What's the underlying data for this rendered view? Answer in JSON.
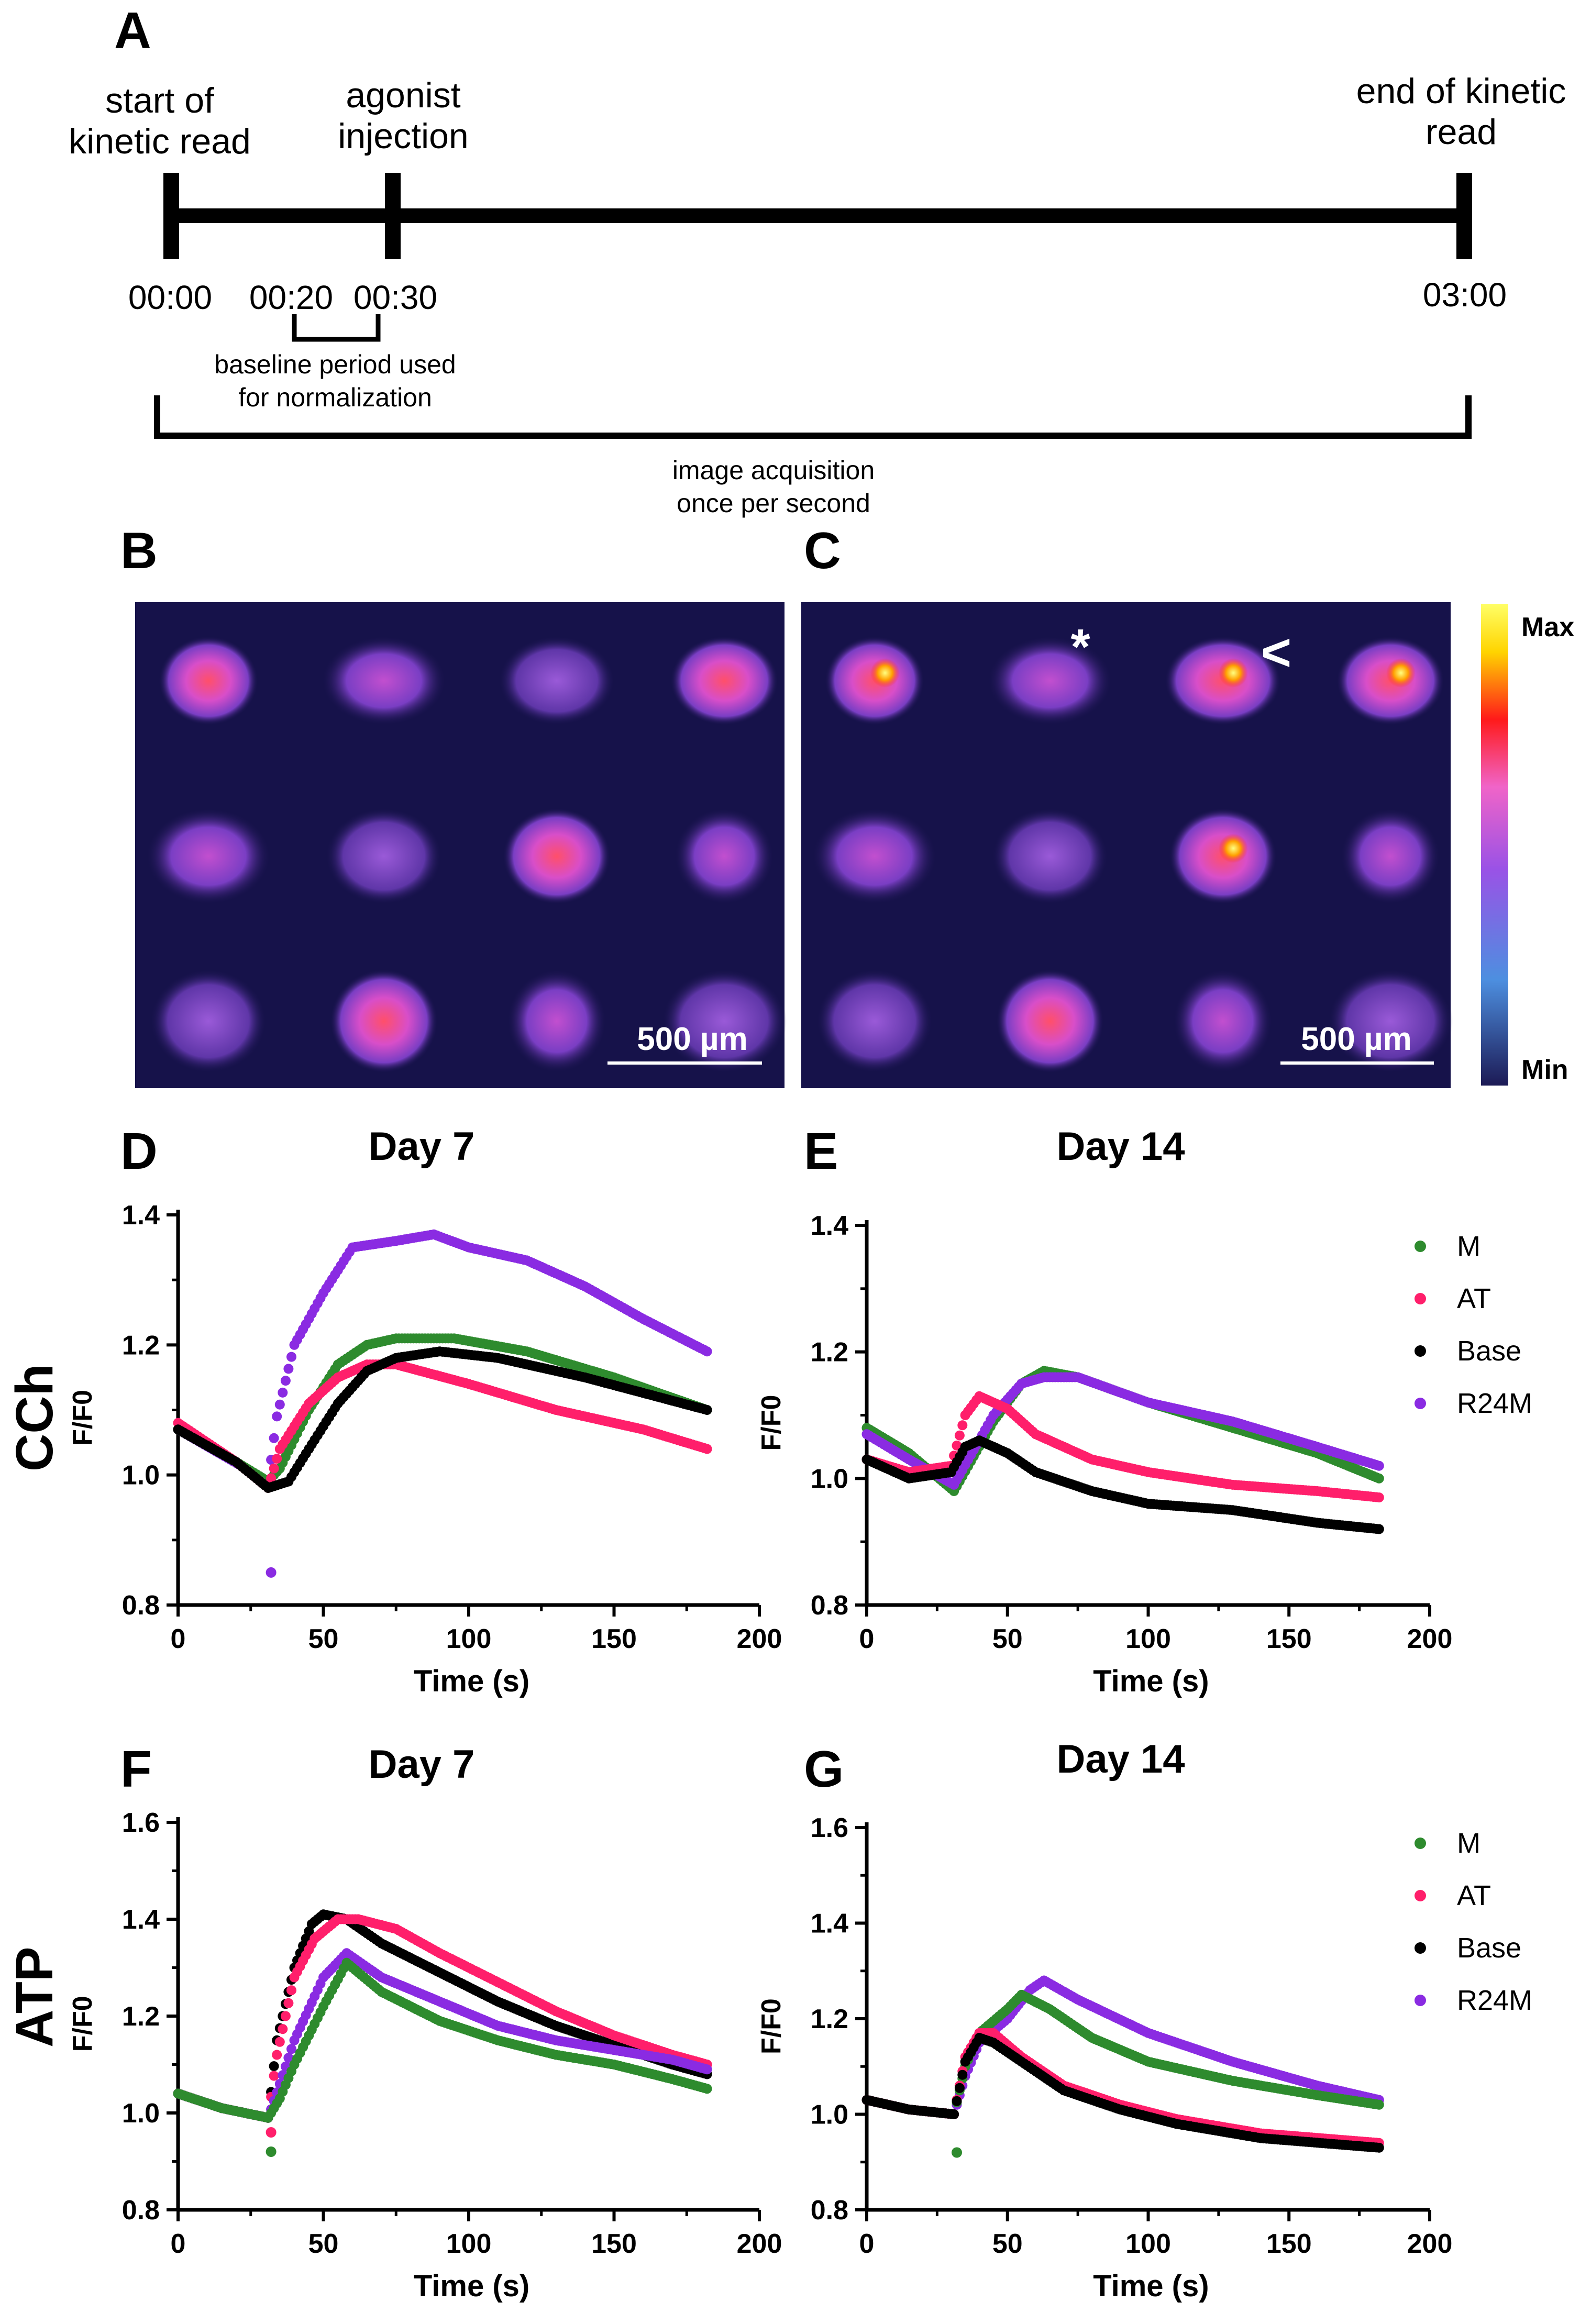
{
  "panel_labels": [
    "A",
    "B",
    "C",
    "D",
    "E",
    "F",
    "G"
  ],
  "timeline": {
    "start_label": [
      "start of",
      "kinetic read"
    ],
    "injection_label": [
      "agonist",
      "injection"
    ],
    "end_label": [
      "end of kinetic",
      "read"
    ],
    "times": [
      "00:00",
      "00:20",
      "00:30",
      "03:00"
    ],
    "baseline_label": [
      "baseline period used",
      "for normalization"
    ],
    "acquisition_label": [
      "image acquisition",
      "once per second"
    ]
  },
  "images": {
    "scale_bar": "500 µm",
    "colorbar_max": "Max",
    "colorbar_min": "Min",
    "markers": [
      "*",
      "<"
    ],
    "colors": {
      "background": "#16124a",
      "colorbar_stops": [
        "#1c1a55",
        "#4d8fe0",
        "#9a52e6",
        "#f064c8",
        "#ff1a1a",
        "#ffd400",
        "#ffff66"
      ]
    }
  },
  "row_labels": {
    "cch": "CCh",
    "atp": "ATP"
  },
  "legend": {
    "entries": [
      {
        "name": "M",
        "color": "#2e8b2e"
      },
      {
        "name": "AT",
        "color": "#ff1f6b"
      },
      {
        "name": "Base",
        "color": "#000000"
      },
      {
        "name": "R24M",
        "color": "#8a2be2"
      }
    ]
  },
  "chart_data": [
    {
      "panel": "D",
      "type": "scatter",
      "title": "Day 7",
      "xlabel": "Time (s)",
      "ylabel": "F/F0",
      "xlim": [
        0,
        200
      ],
      "ylim": [
        0.8,
        1.4
      ],
      "xticks": [
        "0",
        "50",
        "100",
        "150",
        "200"
      ],
      "yticks": [
        "0.8",
        "1.0",
        "1.2",
        "1.4"
      ],
      "series": [
        {
          "name": "R24M",
          "x": [
            0,
            31,
            34,
            40,
            50,
            60,
            75,
            88,
            100,
            120,
            140,
            160,
            182
          ],
          "y": [
            1.07,
            0.99,
            1.09,
            1.2,
            1.28,
            1.35,
            1.36,
            1.37,
            1.35,
            1.33,
            1.29,
            1.24,
            1.19
          ]
        },
        {
          "name": "M",
          "x": [
            0,
            20,
            31,
            35,
            45,
            55,
            65,
            75,
            95,
            120,
            150,
            182
          ],
          "y": [
            1.07,
            1.02,
            0.99,
            1.01,
            1.1,
            1.17,
            1.2,
            1.21,
            1.21,
            1.19,
            1.15,
            1.1
          ]
        },
        {
          "name": "AT",
          "x": [
            0,
            20,
            31,
            35,
            45,
            55,
            65,
            75,
            100,
            130,
            160,
            182
          ],
          "y": [
            1.08,
            1.02,
            0.98,
            1.04,
            1.11,
            1.15,
            1.17,
            1.17,
            1.14,
            1.1,
            1.07,
            1.04
          ]
        },
        {
          "name": "Base",
          "x": [
            0,
            20,
            31,
            38,
            45,
            55,
            65,
            75,
            90,
            110,
            140,
            182
          ],
          "y": [
            1.07,
            1.02,
            0.98,
            0.99,
            1.04,
            1.11,
            1.16,
            1.18,
            1.19,
            1.18,
            1.15,
            1.1
          ]
        }
      ],
      "outliers": [
        {
          "series": "R24M",
          "x": 32,
          "y": 0.85
        }
      ]
    },
    {
      "panel": "E",
      "type": "scatter",
      "title": "Day 14",
      "xlabel": "Time (s)",
      "ylabel": "F/F0",
      "xlim": [
        0,
        200
      ],
      "ylim": [
        0.8,
        1.4
      ],
      "xticks": [
        "0",
        "50",
        "100",
        "150",
        "200"
      ],
      "yticks": [
        "0.8",
        "1.0",
        "1.2",
        "1.4"
      ],
      "series": [
        {
          "name": "M",
          "x": [
            0,
            15,
            31,
            45,
            55,
            63,
            75,
            100,
            130,
            160,
            182
          ],
          "y": [
            1.08,
            1.04,
            0.98,
            1.09,
            1.15,
            1.17,
            1.16,
            1.12,
            1.08,
            1.04,
            1.0
          ]
        },
        {
          "name": "R24M",
          "x": [
            0,
            15,
            31,
            45,
            55,
            63,
            75,
            100,
            130,
            160,
            182
          ],
          "y": [
            1.07,
            1.03,
            0.99,
            1.1,
            1.15,
            1.16,
            1.16,
            1.12,
            1.09,
            1.05,
            1.02
          ]
        },
        {
          "name": "AT",
          "x": [
            0,
            15,
            30,
            35,
            40,
            50,
            60,
            80,
            100,
            130,
            160,
            182
          ],
          "y": [
            1.03,
            1.01,
            1.02,
            1.1,
            1.13,
            1.11,
            1.07,
            1.03,
            1.01,
            0.99,
            0.98,
            0.97
          ]
        },
        {
          "name": "Base",
          "x": [
            0,
            15,
            30,
            35,
            40,
            50,
            60,
            80,
            100,
            130,
            160,
            182
          ],
          "y": [
            1.03,
            1.0,
            1.01,
            1.05,
            1.06,
            1.04,
            1.01,
            0.98,
            0.96,
            0.95,
            0.93,
            0.92
          ]
        }
      ]
    },
    {
      "panel": "F",
      "type": "scatter",
      "title": "Day 7",
      "xlabel": "Time (s)",
      "ylabel": "F/F0",
      "xlim": [
        0,
        200
      ],
      "ylim": [
        0.8,
        1.6
      ],
      "xticks": [
        "0",
        "50",
        "100",
        "150",
        "200"
      ],
      "yticks": [
        "0.8",
        "1.0",
        "1.2",
        "1.4",
        "1.6"
      ],
      "series": [
        {
          "name": "Base",
          "x": [
            0,
            15,
            31,
            34,
            40,
            46,
            50,
            58,
            70,
            90,
            110,
            130,
            150,
            170,
            182
          ],
          "y": [
            1.04,
            1.01,
            0.99,
            1.15,
            1.3,
            1.39,
            1.41,
            1.4,
            1.35,
            1.29,
            1.23,
            1.18,
            1.14,
            1.1,
            1.08
          ]
        },
        {
          "name": "AT",
          "x": [
            0,
            15,
            31,
            34,
            40,
            47,
            55,
            62,
            75,
            90,
            110,
            130,
            150,
            170,
            182
          ],
          "y": [
            1.04,
            1.01,
            0.99,
            1.12,
            1.28,
            1.36,
            1.4,
            1.4,
            1.38,
            1.33,
            1.27,
            1.21,
            1.16,
            1.12,
            1.1
          ]
        },
        {
          "name": "R24M",
          "x": [
            0,
            15,
            31,
            35,
            40,
            50,
            58,
            70,
            90,
            110,
            130,
            150,
            170,
            182
          ],
          "y": [
            1.04,
            1.01,
            0.99,
            1.06,
            1.15,
            1.28,
            1.33,
            1.28,
            1.23,
            1.18,
            1.15,
            1.13,
            1.11,
            1.09
          ]
        },
        {
          "name": "M",
          "x": [
            0,
            15,
            31,
            35,
            40,
            50,
            58,
            70,
            90,
            110,
            130,
            150,
            170,
            182
          ],
          "y": [
            1.04,
            1.01,
            0.99,
            1.03,
            1.1,
            1.22,
            1.31,
            1.25,
            1.19,
            1.15,
            1.12,
            1.1,
            1.07,
            1.05
          ]
        }
      ],
      "outliers": [
        {
          "series": "M",
          "x": 32,
          "y": 0.92
        },
        {
          "series": "AT",
          "x": 32,
          "y": 0.96
        }
      ]
    },
    {
      "panel": "G",
      "type": "scatter",
      "title": "Day 14",
      "xlabel": "Time (s)",
      "ylabel": "F/F0",
      "xlim": [
        0,
        200
      ],
      "ylim": [
        0.8,
        1.6
      ],
      "xticks": [
        "0",
        "50",
        "100",
        "150",
        "200"
      ],
      "yticks": [
        "0.8",
        "1.0",
        "1.2",
        "1.4",
        "1.6"
      ],
      "series": [
        {
          "name": "R24M",
          "x": [
            0,
            15,
            31,
            35,
            40,
            50,
            58,
            63,
            75,
            100,
            130,
            160,
            182
          ],
          "y": [
            1.03,
            1.01,
            1.0,
            1.08,
            1.15,
            1.2,
            1.26,
            1.28,
            1.24,
            1.17,
            1.11,
            1.06,
            1.03
          ]
        },
        {
          "name": "M",
          "x": [
            0,
            15,
            31,
            35,
            40,
            50,
            55,
            65,
            80,
            100,
            130,
            160,
            182
          ],
          "y": [
            1.03,
            1.01,
            1.0,
            1.1,
            1.17,
            1.22,
            1.25,
            1.22,
            1.16,
            1.11,
            1.07,
            1.04,
            1.02
          ]
        },
        {
          "name": "AT",
          "x": [
            0,
            15,
            31,
            35,
            40,
            45,
            55,
            70,
            90,
            110,
            140,
            182
          ],
          "y": [
            1.03,
            1.01,
            1.0,
            1.12,
            1.17,
            1.17,
            1.12,
            1.06,
            1.02,
            0.99,
            0.96,
            0.94
          ]
        },
        {
          "name": "Base",
          "x": [
            0,
            15,
            31,
            35,
            40,
            45,
            55,
            70,
            90,
            110,
            140,
            182
          ],
          "y": [
            1.03,
            1.01,
            1.0,
            1.11,
            1.16,
            1.15,
            1.11,
            1.05,
            1.01,
            0.98,
            0.95,
            0.93
          ]
        }
      ],
      "outliers": [
        {
          "series": "M",
          "x": 32,
          "y": 0.92
        }
      ]
    }
  ]
}
